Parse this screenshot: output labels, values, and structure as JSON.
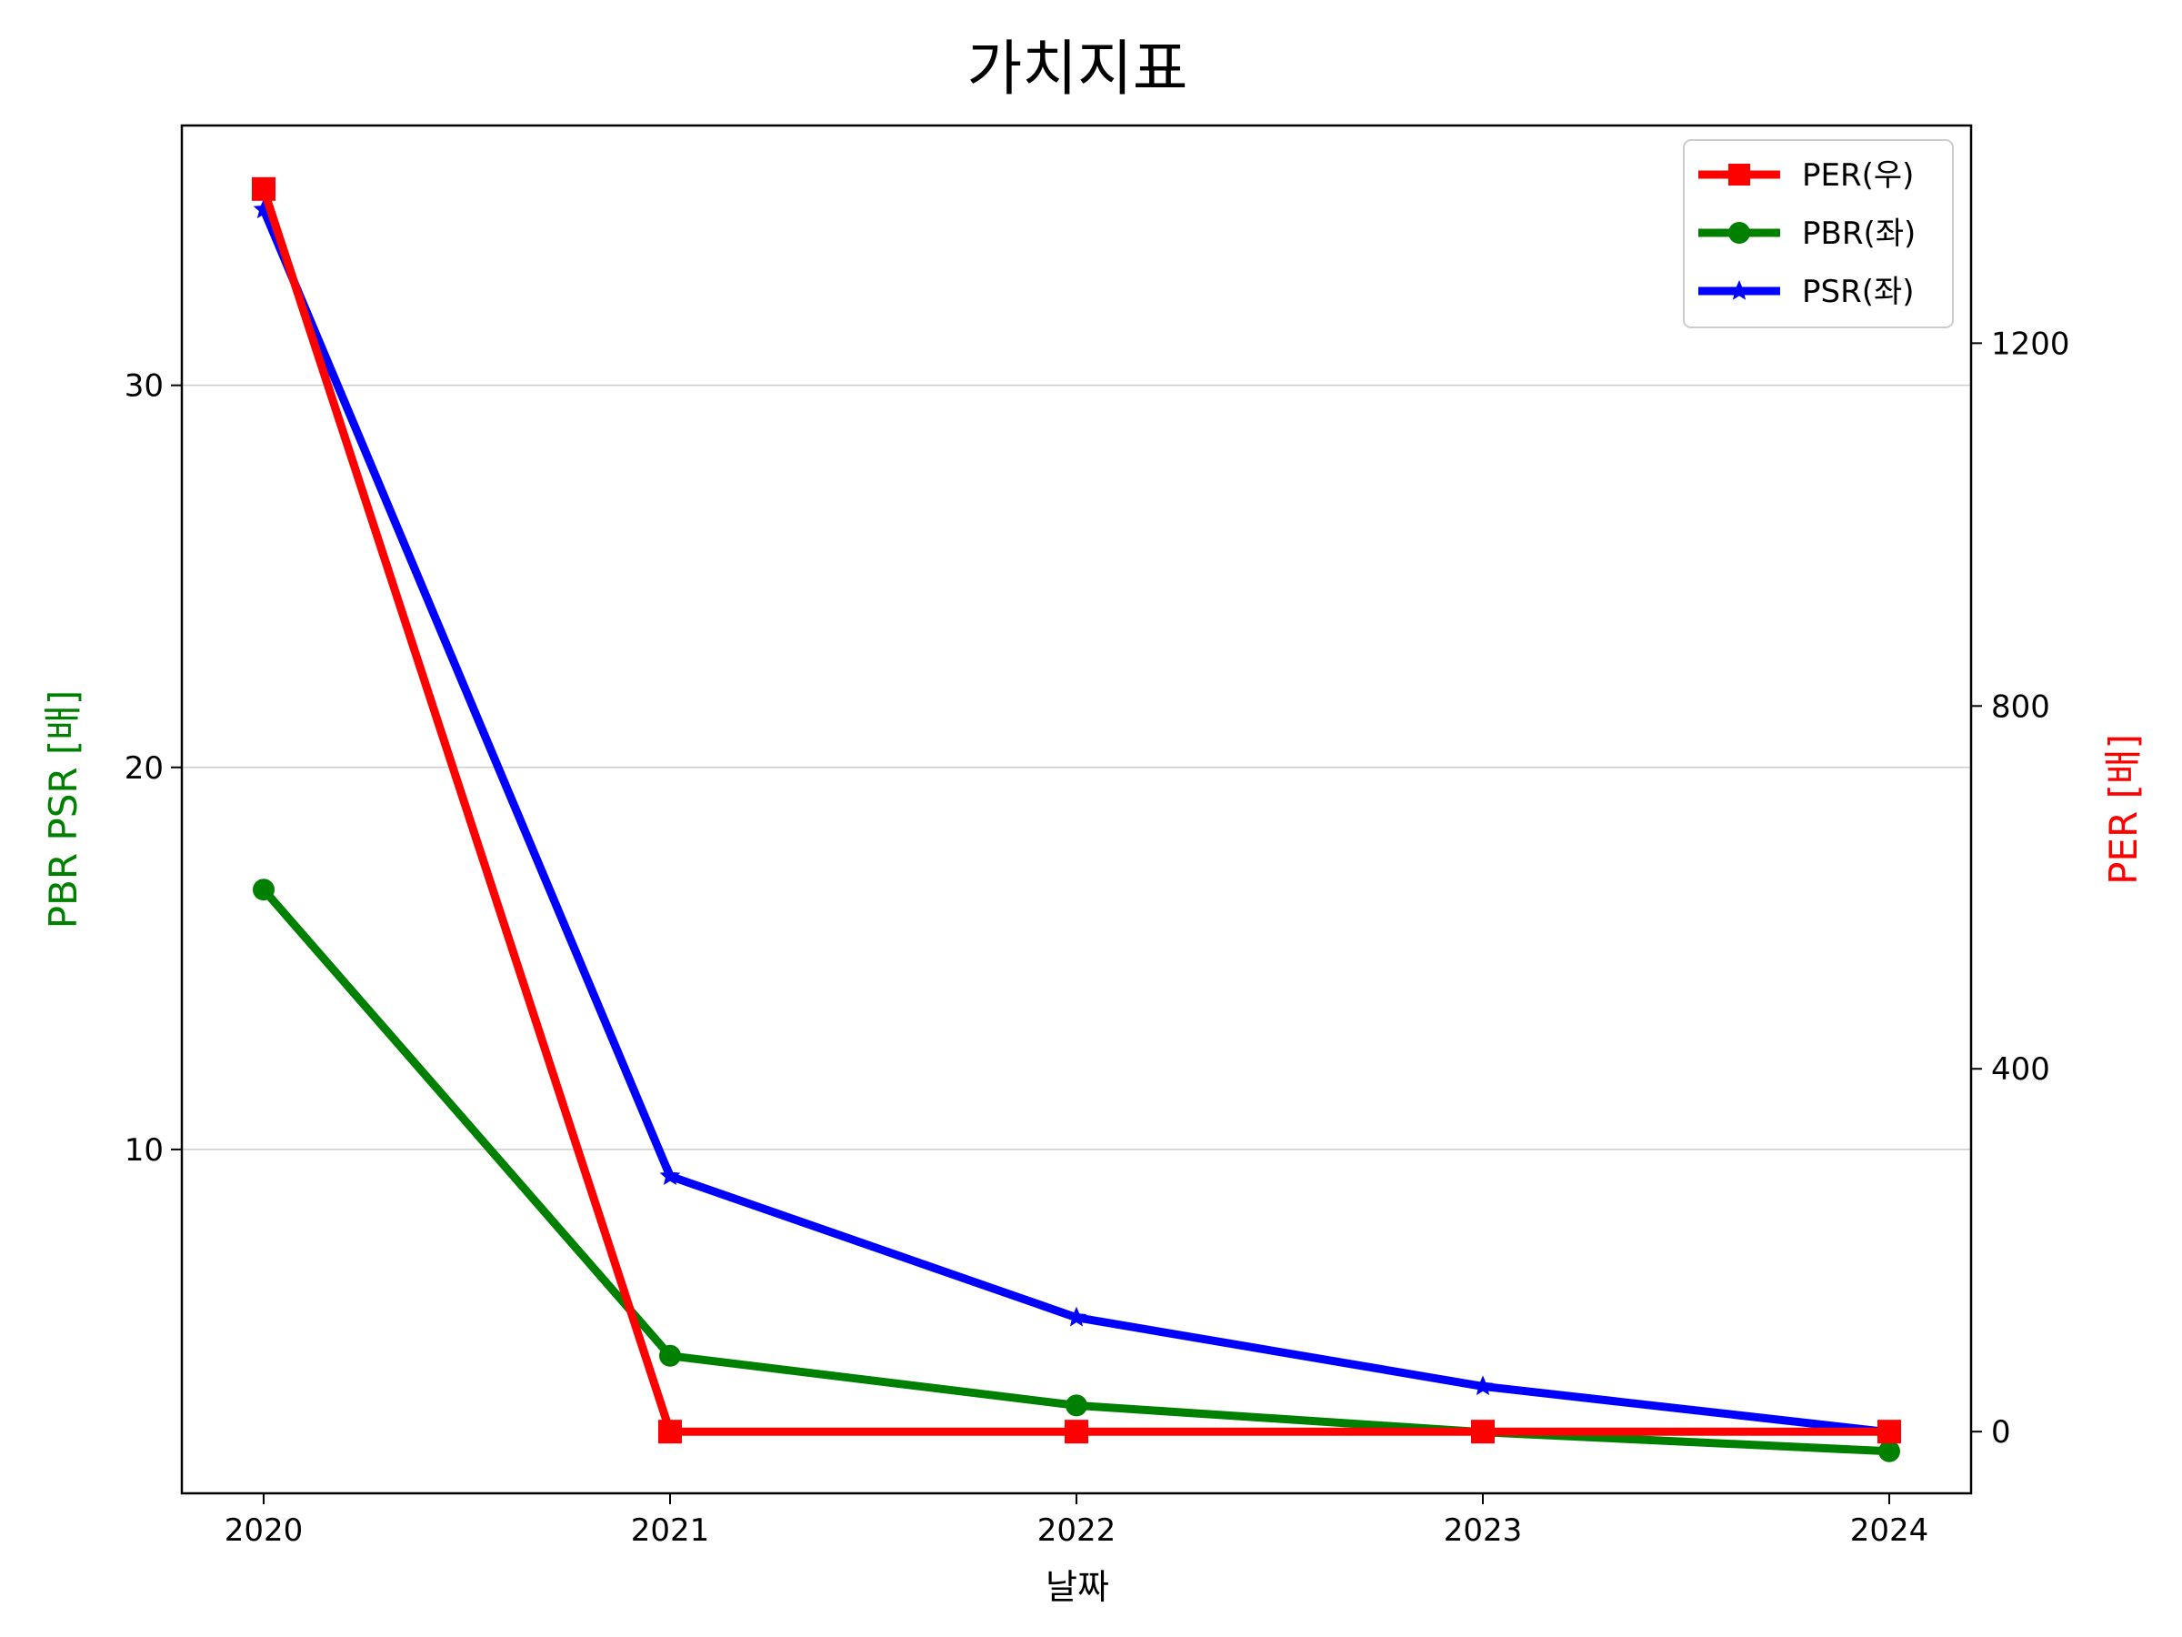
{
  "chart_data": {
    "type": "line",
    "title": "가치지표",
    "xlabel": "날짜",
    "ylabel_left": "PBR PSR [배]",
    "ylabel_right": "PER [배]",
    "ylabel_left_color": "#008000",
    "ylabel_right_color": "#ff0000",
    "categories": [
      "2020",
      "2021",
      "2022",
      "2023",
      "2024"
    ],
    "yticks_left": [
      10,
      20,
      30
    ],
    "yticks_right": [
      0,
      400,
      800,
      1200
    ],
    "ylim_left": [
      1.0,
      36.8
    ],
    "ylim_right": [
      -68,
      1440
    ],
    "grid": "horizontal (left axis)",
    "legend_position": "top-right",
    "series": [
      {
        "name": "PER(우)",
        "axis": "right",
        "color": "#ff0000",
        "marker": "square",
        "values": [
          1370,
          0,
          0,
          0,
          0
        ]
      },
      {
        "name": "PBR(좌)",
        "axis": "left",
        "color": "#008000",
        "marker": "circle",
        "values": [
          16.8,
          4.6,
          3.3,
          2.6,
          2.1
        ]
      },
      {
        "name": "PSR(좌)",
        "axis": "left",
        "color": "#0000ff",
        "marker": "star",
        "values": [
          34.6,
          9.3,
          5.6,
          3.8,
          2.6
        ]
      }
    ]
  }
}
